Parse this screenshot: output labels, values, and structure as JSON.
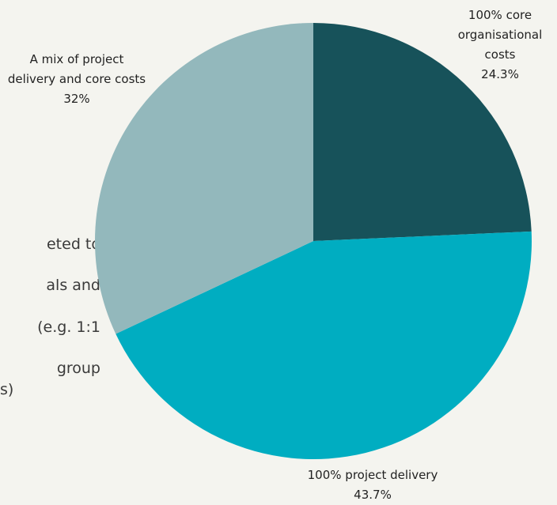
{
  "chart_data": {
    "type": "pie",
    "categories": [
      "100% core organisational costs",
      "100% project delivery",
      "A mix of project delivery and core costs"
    ],
    "values": [
      24.3,
      43.7,
      32
    ],
    "value_labels": [
      "24.3%",
      "43.7%",
      "32%"
    ],
    "colors": [
      "#17525a",
      "#00adc1",
      "#93b8bc"
    ]
  },
  "background_text": [
    "eted to",
    "als and",
    "(e.g. 1:1",
    "group",
    "s)"
  ]
}
